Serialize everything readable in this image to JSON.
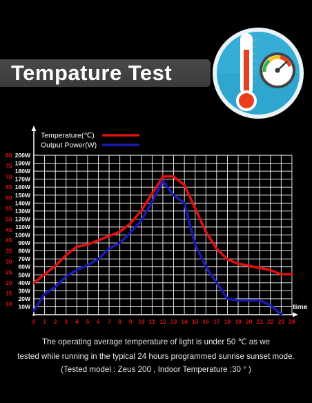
{
  "header": {
    "title": "Tempature Test"
  },
  "caption": {
    "line1": "The operating average temperature of light is under 50 ℃ as we",
    "line2": "tested while running in the typical 24 hours programmed sunrise sunset mode.",
    "line3": "(Tested model : Zeus 200 , Indoor Temperature :30 ° )"
  },
  "icon": {
    "name": "thermometer-gauge-icon"
  },
  "colors": {
    "temperature": "#e01010",
    "power": "#1a1ab0",
    "grid": "#ffffff",
    "red_ticks": "#e01010",
    "white_ticks": "#ffffff"
  },
  "chart_data": {
    "type": "line",
    "x": [
      0,
      1,
      2,
      3,
      4,
      5,
      6,
      7,
      8,
      9,
      10,
      11,
      12,
      13,
      14,
      15,
      16,
      17,
      18,
      19,
      20,
      21,
      22,
      23,
      24
    ],
    "xlabel": "time",
    "xlim": [
      0,
      24
    ],
    "x_ticks": [
      "0",
      "1",
      "2",
      "3",
      "4",
      "5",
      "6",
      "7",
      "8",
      "9",
      "10",
      "11",
      "12",
      "13",
      "14",
      "15",
      "16",
      "17",
      "18",
      "19",
      "20",
      "21",
      "22",
      "23",
      "24"
    ],
    "y_left_ticks": [
      "10",
      "15",
      "20",
      "25",
      "30",
      "35",
      "40",
      "45",
      "50",
      "55",
      "60",
      "65",
      "70",
      "75",
      "80"
    ],
    "y_left_range": [
      5,
      80
    ],
    "y_right_ticks": [
      "10W",
      "20W",
      "30W",
      "40W",
      "50W",
      "60W",
      "70W",
      "80W",
      "90W",
      "100W",
      "110W",
      "120W",
      "130W",
      "140W",
      "150W",
      "160W",
      "170W",
      "180W",
      "190W",
      "200W"
    ],
    "y_right_range": [
      0,
      200
    ],
    "legend_position": "top-left",
    "series": [
      {
        "name": "Temperature(℃)",
        "axis": "left",
        "x": [
          0,
          1,
          2,
          3,
          4,
          5,
          6,
          7,
          8,
          9,
          10,
          11,
          12,
          13,
          14,
          15,
          16,
          17,
          18,
          19,
          20,
          21,
          22,
          23,
          24
        ],
        "values": [
          20,
          24,
          28,
          33,
          37,
          38,
          40,
          42,
          44,
          48,
          54,
          62,
          70,
          70,
          66,
          55,
          44,
          36,
          31,
          29,
          28,
          27,
          26,
          24,
          24
        ]
      },
      {
        "name": "Output Power(W)",
        "axis": "right",
        "x": [
          0,
          1,
          2,
          3,
          4,
          5,
          6,
          7,
          8,
          9,
          10,
          11,
          12,
          13,
          14,
          15,
          16,
          17,
          18,
          19,
          20,
          21,
          22,
          23
        ],
        "values": [
          5,
          26,
          35,
          48,
          56,
          62,
          70,
          83,
          90,
          103,
          118,
          142,
          168,
          150,
          140,
          88,
          60,
          40,
          20,
          18,
          18,
          18,
          12,
          0
        ]
      }
    ]
  }
}
